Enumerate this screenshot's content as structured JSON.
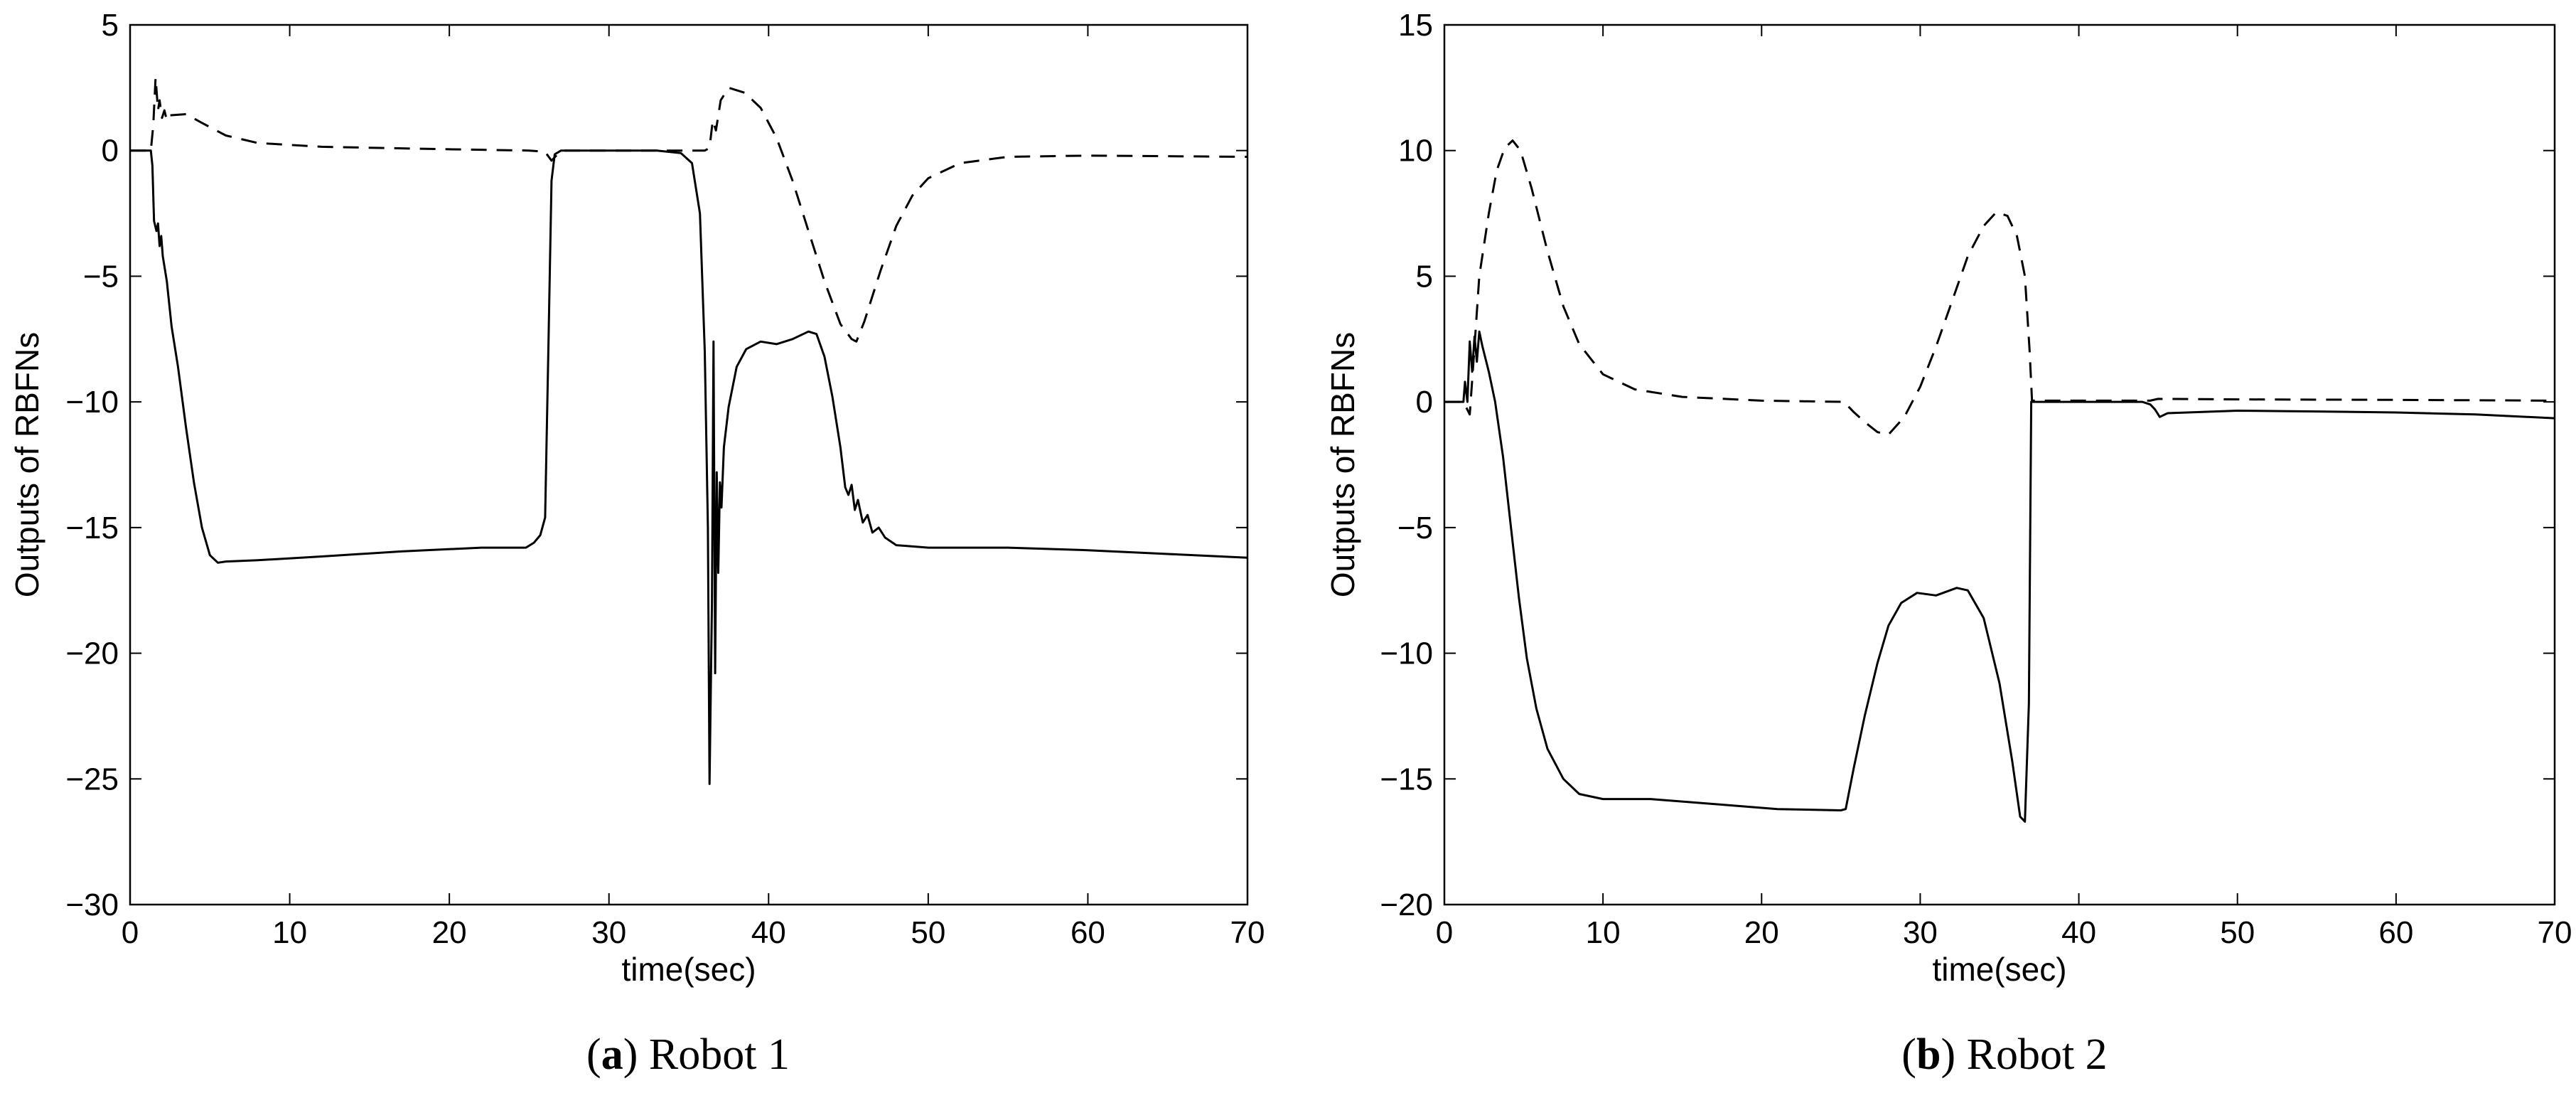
{
  "captions": [
    {
      "letter": "a",
      "text": "Robot 1"
    },
    {
      "letter": "b",
      "text": "Robot 2"
    }
  ],
  "chart_data": [
    {
      "type": "line",
      "title": "",
      "xlabel": "time(sec)",
      "ylabel": "Outputs of RBFNs",
      "xlim": [
        0,
        70
      ],
      "ylim": [
        -30,
        5
      ],
      "xticks": [
        0,
        10,
        20,
        30,
        40,
        50,
        60,
        70
      ],
      "yticks": [
        -30,
        -25,
        -20,
        -15,
        -10,
        -5,
        0,
        5
      ],
      "grid": false,
      "legend": "none",
      "series": [
        {
          "style": "solid",
          "color": "#000000",
          "points": [
            [
              0,
              0
            ],
            [
              1.3,
              0
            ],
            [
              1.4,
              -0.6
            ],
            [
              1.5,
              -2.8
            ],
            [
              1.65,
              -3.2
            ],
            [
              1.75,
              -2.9
            ],
            [
              1.85,
              -3.8
            ],
            [
              1.95,
              -3.4
            ],
            [
              2.05,
              -4.2
            ],
            [
              2.3,
              -5.2
            ],
            [
              2.6,
              -7.0
            ],
            [
              3.0,
              -8.6
            ],
            [
              3.5,
              -11.0
            ],
            [
              4.0,
              -13.2
            ],
            [
              4.5,
              -15.0
            ],
            [
              5.0,
              -16.1
            ],
            [
              5.5,
              -16.4
            ],
            [
              6,
              -16.35
            ],
            [
              8,
              -16.3
            ],
            [
              12,
              -16.15
            ],
            [
              17,
              -15.95
            ],
            [
              22,
              -15.8
            ],
            [
              24.8,
              -15.8
            ],
            [
              25.3,
              -15.6
            ],
            [
              25.7,
              -15.3
            ],
            [
              26.0,
              -14.6
            ],
            [
              26.2,
              -8
            ],
            [
              26.4,
              -1.2
            ],
            [
              26.6,
              -0.15
            ],
            [
              27,
              0
            ],
            [
              33,
              0
            ],
            [
              34.5,
              -0.1
            ],
            [
              35.2,
              -0.5
            ],
            [
              35.7,
              -2.5
            ],
            [
              36.0,
              -8
            ],
            [
              36.2,
              -15
            ],
            [
              36.3,
              -25.2
            ],
            [
              36.45,
              -18
            ],
            [
              36.55,
              -7.6
            ],
            [
              36.65,
              -20.8
            ],
            [
              36.75,
              -12.8
            ],
            [
              36.85,
              -16.8
            ],
            [
              36.95,
              -13.2
            ],
            [
              37.05,
              -14.2
            ],
            [
              37.2,
              -11.8
            ],
            [
              37.5,
              -10.2
            ],
            [
              38.0,
              -8.6
            ],
            [
              38.6,
              -7.9
            ],
            [
              39.5,
              -7.6
            ],
            [
              40.5,
              -7.7
            ],
            [
              41.5,
              -7.5
            ],
            [
              42.5,
              -7.2
            ],
            [
              43.0,
              -7.3
            ],
            [
              43.5,
              -8.2
            ],
            [
              44.0,
              -9.8
            ],
            [
              44.5,
              -11.8
            ],
            [
              44.8,
              -13.4
            ],
            [
              45.0,
              -13.7
            ],
            [
              45.2,
              -13.3
            ],
            [
              45.4,
              -14.3
            ],
            [
              45.6,
              -13.9
            ],
            [
              45.9,
              -14.8
            ],
            [
              46.2,
              -14.5
            ],
            [
              46.5,
              -15.2
            ],
            [
              46.9,
              -15.0
            ],
            [
              47.3,
              -15.4
            ],
            [
              48,
              -15.7
            ],
            [
              50,
              -15.8
            ],
            [
              55,
              -15.8
            ],
            [
              60,
              -15.9
            ],
            [
              65,
              -16.05
            ],
            [
              70,
              -16.2
            ]
          ]
        },
        {
          "style": "dashed",
          "color": "#000000",
          "points": [
            [
              0,
              0
            ],
            [
              1.3,
              0
            ],
            [
              1.45,
              1.0
            ],
            [
              1.6,
              2.9
            ],
            [
              1.75,
              1.6
            ],
            [
              1.85,
              2.0
            ],
            [
              2.0,
              1.3
            ],
            [
              2.15,
              1.6
            ],
            [
              2.3,
              1.2
            ],
            [
              2.5,
              1.4
            ],
            [
              3.5,
              1.45
            ],
            [
              4.5,
              1.1
            ],
            [
              6,
              0.6
            ],
            [
              8,
              0.3
            ],
            [
              12,
              0.15
            ],
            [
              20,
              0.05
            ],
            [
              25,
              0
            ],
            [
              26,
              -0.05
            ],
            [
              26.4,
              -0.4
            ],
            [
              27,
              0
            ],
            [
              36,
              0
            ],
            [
              36.3,
              0.1
            ],
            [
              36.5,
              1.2
            ],
            [
              36.7,
              0.8
            ],
            [
              37.0,
              2.0
            ],
            [
              37.5,
              2.5
            ],
            [
              38.5,
              2.3
            ],
            [
              39.5,
              1.7
            ],
            [
              40.5,
              0.5
            ],
            [
              41.5,
              -1.2
            ],
            [
              42.5,
              -3.2
            ],
            [
              43.5,
              -5.2
            ],
            [
              44.5,
              -6.9
            ],
            [
              45.2,
              -7.5
            ],
            [
              45.5,
              -7.6
            ],
            [
              46,
              -6.8
            ],
            [
              47,
              -4.8
            ],
            [
              48,
              -3.0
            ],
            [
              49,
              -1.8
            ],
            [
              50,
              -1.1
            ],
            [
              52,
              -0.5
            ],
            [
              55,
              -0.25
            ],
            [
              60,
              -0.2
            ],
            [
              70,
              -0.25
            ]
          ]
        }
      ]
    },
    {
      "type": "line",
      "title": "",
      "xlabel": "time(sec)",
      "ylabel": "Outputs of RBFNs",
      "xlim": [
        0,
        70
      ],
      "ylim": [
        -20,
        15
      ],
      "xticks": [
        0,
        10,
        20,
        30,
        40,
        50,
        60,
        70
      ],
      "yticks": [
        -20,
        -15,
        -10,
        -5,
        0,
        5,
        10,
        15
      ],
      "grid": false,
      "legend": "none",
      "series": [
        {
          "style": "solid",
          "color": "#000000",
          "points": [
            [
              0,
              0
            ],
            [
              1.2,
              0
            ],
            [
              1.3,
              0.8
            ],
            [
              1.45,
              0
            ],
            [
              1.6,
              2.4
            ],
            [
              1.75,
              1.2
            ],
            [
              1.9,
              2.6
            ],
            [
              2.05,
              1.6
            ],
            [
              2.2,
              2.8
            ],
            [
              2.4,
              2.2
            ],
            [
              2.8,
              1.2
            ],
            [
              3.2,
              0
            ],
            [
              3.7,
              -2.2
            ],
            [
              4.2,
              -5.0
            ],
            [
              4.7,
              -7.8
            ],
            [
              5.2,
              -10.2
            ],
            [
              5.8,
              -12.2
            ],
            [
              6.5,
              -13.8
            ],
            [
              7.5,
              -15.0
            ],
            [
              8.5,
              -15.6
            ],
            [
              10,
              -15.8
            ],
            [
              13,
              -15.8
            ],
            [
              17,
              -16.0
            ],
            [
              21,
              -16.2
            ],
            [
              25,
              -16.25
            ],
            [
              25.3,
              -16.2
            ],
            [
              25.8,
              -14.6
            ],
            [
              26.5,
              -12.5
            ],
            [
              27.3,
              -10.4
            ],
            [
              28,
              -8.9
            ],
            [
              28.8,
              -8.0
            ],
            [
              29.8,
              -7.6
            ],
            [
              31,
              -7.7
            ],
            [
              32.3,
              -7.4
            ],
            [
              33,
              -7.5
            ],
            [
              34,
              -8.6
            ],
            [
              35,
              -11.2
            ],
            [
              35.8,
              -14.3
            ],
            [
              36.3,
              -16.5
            ],
            [
              36.6,
              -16.7
            ],
            [
              36.85,
              -12.0
            ],
            [
              37.0,
              0
            ],
            [
              37.5,
              0
            ],
            [
              44,
              0
            ],
            [
              44.5,
              -0.1
            ],
            [
              44.8,
              -0.3
            ],
            [
              45.1,
              -0.6
            ],
            [
              45.6,
              -0.45
            ],
            [
              50,
              -0.35
            ],
            [
              55,
              -0.38
            ],
            [
              60,
              -0.42
            ],
            [
              65,
              -0.5
            ],
            [
              70,
              -0.65
            ]
          ]
        },
        {
          "style": "dashed",
          "color": "#000000",
          "points": [
            [
              0,
              0
            ],
            [
              1.2,
              0
            ],
            [
              1.6,
              -0.5
            ],
            [
              1.9,
              2.2
            ],
            [
              2.2,
              5.0
            ],
            [
              2.8,
              7.5
            ],
            [
              3.3,
              9.2
            ],
            [
              3.8,
              10.1
            ],
            [
              4.3,
              10.4
            ],
            [
              4.8,
              10.0
            ],
            [
              5.5,
              8.5
            ],
            [
              6.5,
              6.0
            ],
            [
              7.5,
              3.8
            ],
            [
              8.5,
              2.3
            ],
            [
              10,
              1.1
            ],
            [
              12,
              0.5
            ],
            [
              15,
              0.2
            ],
            [
              20,
              0.05
            ],
            [
              25.2,
              0
            ],
            [
              25.8,
              -0.4
            ],
            [
              26.5,
              -0.8
            ],
            [
              27.3,
              -1.2
            ],
            [
              28,
              -1.3
            ],
            [
              29,
              -0.6
            ],
            [
              30,
              0.6
            ],
            [
              31,
              2.2
            ],
            [
              32,
              4.0
            ],
            [
              33,
              5.8
            ],
            [
              34,
              7.0
            ],
            [
              34.8,
              7.55
            ],
            [
              35.5,
              7.4
            ],
            [
              36.1,
              6.6
            ],
            [
              36.6,
              5.0
            ],
            [
              36.9,
              2.0
            ],
            [
              37.05,
              0.05
            ],
            [
              37.5,
              0.05
            ],
            [
              44.5,
              0.05
            ],
            [
              45,
              0.12
            ],
            [
              50,
              0.1
            ],
            [
              60,
              0.08
            ],
            [
              70,
              0.05
            ]
          ]
        }
      ]
    }
  ]
}
